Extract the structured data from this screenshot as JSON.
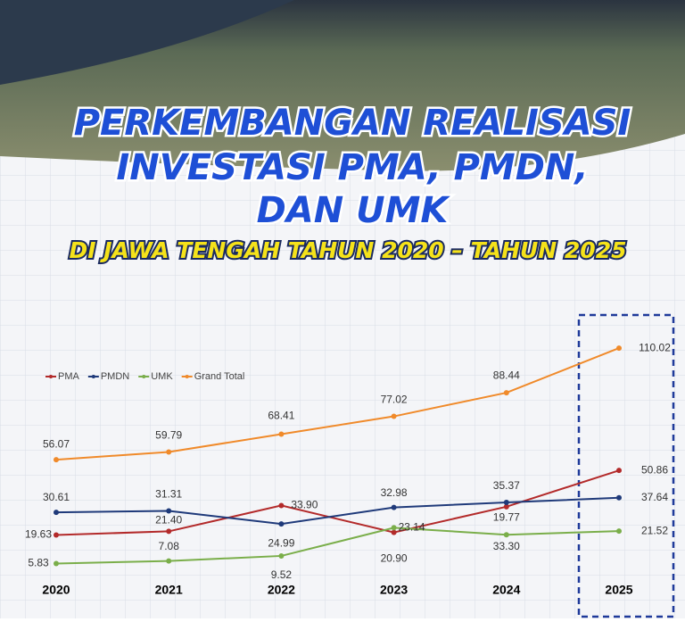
{
  "chart_data": {
    "type": "line",
    "title": [
      "PERKEMBANGAN REALISASI",
      "INVESTASI PMA, PMDN,",
      "DAN UMK"
    ],
    "subtitle": "DI JAWA TENGAH TAHUN 2020 – TAHUN 2025",
    "categories": [
      "2020",
      "2021",
      "2022",
      "2023",
      "2024",
      "2025"
    ],
    "series": [
      {
        "name": "PMA",
        "color": "#b32a2a",
        "values": [
          19.63,
          21.4,
          33.9,
          20.9,
          33.3,
          50.86
        ],
        "value_labels": [
          "19.63",
          "21.40",
          "33.90",
          "20.90",
          "33.30",
          "50.86"
        ]
      },
      {
        "name": "PMDN",
        "color": "#1f3a7a",
        "values": [
          30.61,
          31.31,
          24.99,
          32.98,
          35.37,
          37.64
        ],
        "value_labels": [
          "30.61",
          "31.31",
          "24.99",
          "32.98",
          "35.37",
          "37.64"
        ]
      },
      {
        "name": "UMK",
        "color": "#7aae4a",
        "values": [
          5.83,
          7.08,
          9.52,
          23.14,
          19.77,
          21.52
        ],
        "value_labels": [
          "5.83",
          "7.08",
          "9.52",
          "23.14",
          "19.77",
          "21.52"
        ]
      },
      {
        "name": "Grand Total",
        "color": "#f08a2a",
        "values": [
          56.07,
          59.79,
          68.41,
          77.02,
          88.44,
          110.02
        ],
        "value_labels": [
          "56.07",
          "59.79",
          "68.41",
          "77.02",
          "88.44",
          "110.02"
        ]
      }
    ],
    "legend": "top-left"
  }
}
